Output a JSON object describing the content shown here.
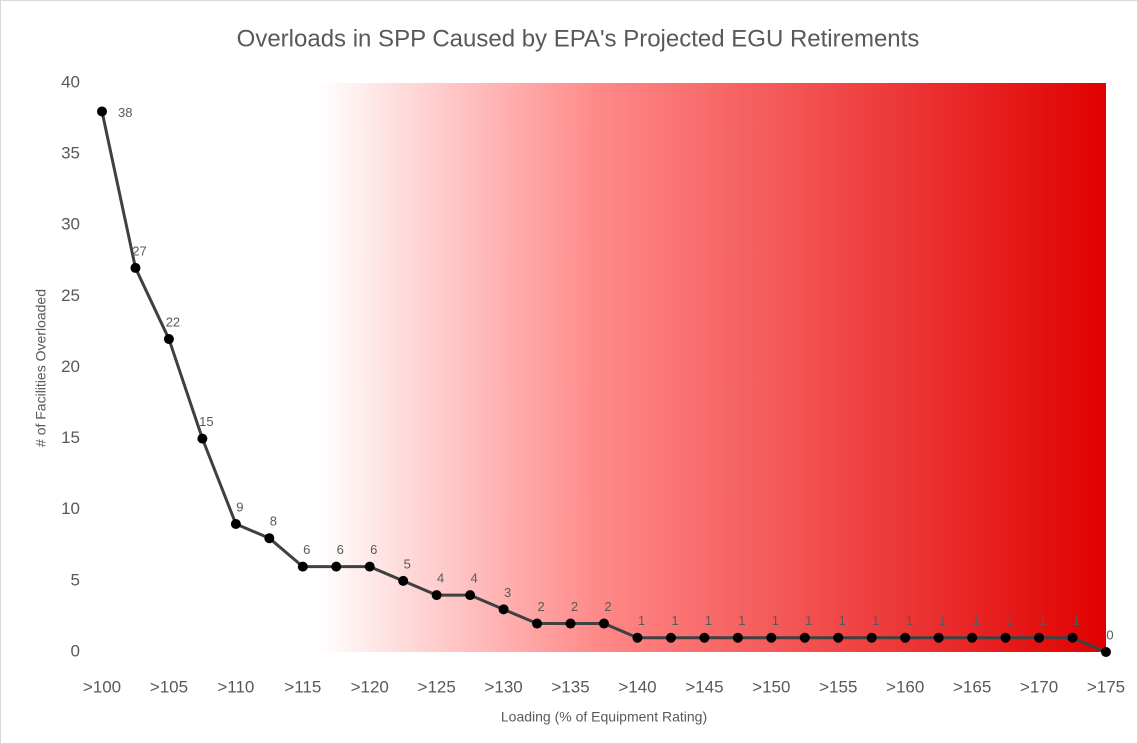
{
  "chart_data": {
    "type": "line",
    "title": "Overloads in SPP Caused by EPA's Projected EGU Retirements",
    "x_label": "Loading (% of Equipment Rating)",
    "y_label": "# of Facilities Overloaded",
    "categories": [
      ">100",
      null,
      ">105",
      null,
      ">110",
      null,
      ">115",
      null,
      ">120",
      null,
      ">125",
      null,
      ">130",
      null,
      ">135",
      null,
      ">140",
      null,
      ">145",
      null,
      ">150",
      null,
      ">155",
      null,
      ">160",
      null,
      ">165",
      null,
      ">170",
      null,
      ">175"
    ],
    "series": [
      {
        "color": "#404040",
        "values": [
          38,
          27,
          22,
          15,
          9,
          8,
          6,
          6,
          6,
          5,
          4,
          4,
          3,
          2,
          2,
          2,
          1,
          1,
          1,
          1,
          1,
          1,
          1,
          1,
          1,
          1,
          1,
          1,
          1,
          1,
          0
        ]
      }
    ],
    "ylim": [
      0,
      40
    ],
    "yticks": [
      0,
      5,
      10,
      15,
      20,
      25,
      30,
      35,
      40
    ],
    "grid": false,
    "data_labels": true
  }
}
